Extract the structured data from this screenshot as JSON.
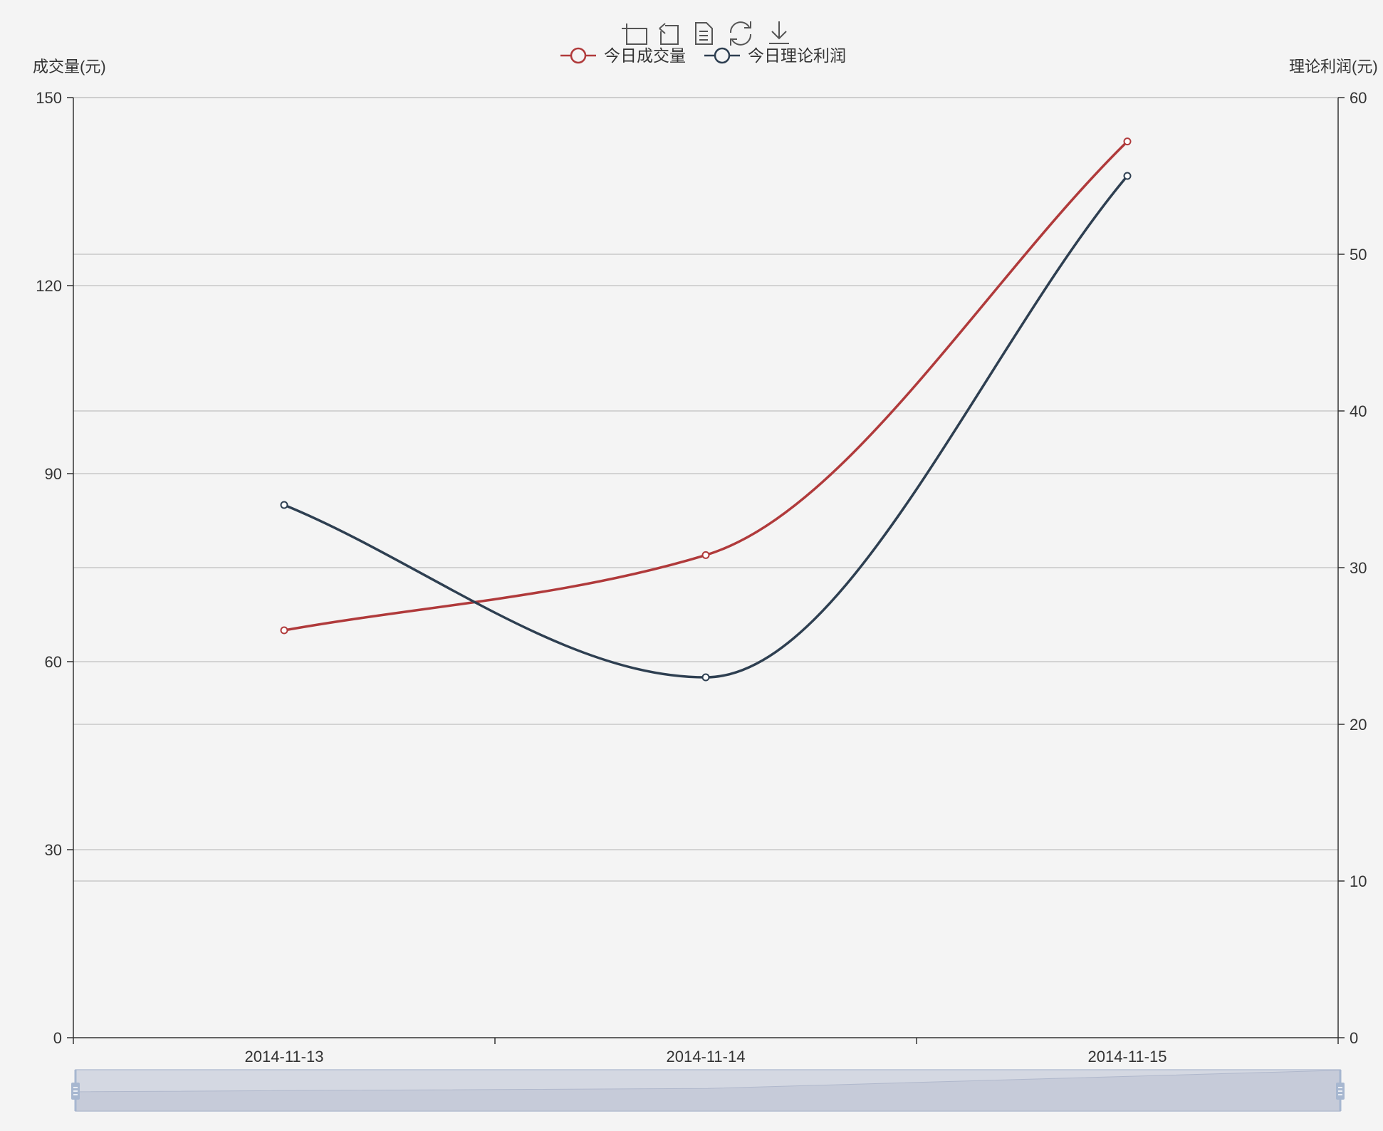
{
  "toolbox": {
    "items": [
      {
        "name": "zoom-icon"
      },
      {
        "name": "zoom-reset-icon"
      },
      {
        "name": "data-view-icon"
      },
      {
        "name": "restore-icon"
      },
      {
        "name": "save-image-icon"
      }
    ]
  },
  "colors": {
    "background": "#f4f4f4",
    "volume": "#b03a3b",
    "profit": "#2e3f51",
    "grid": "#c8c8c8",
    "axis": "#333333",
    "slider_fill": "#d4d8e2",
    "slider_border": "#b6c0d4"
  },
  "chart_data": {
    "type": "line",
    "smooth": true,
    "categories": [
      "2014-11-13",
      "2014-11-14",
      "2014-11-15"
    ],
    "y_left": {
      "label": "成交量(元)",
      "ylim": [
        0,
        150
      ],
      "ticks": [
        0,
        30,
        60,
        90,
        120,
        150
      ]
    },
    "y_right": {
      "label": "理论利润(元)",
      "ylim": [
        0,
        60
      ],
      "ticks": [
        0,
        10,
        20,
        30,
        40,
        50,
        60
      ]
    },
    "series": [
      {
        "name": "今日成交量",
        "axis": "left",
        "color": "#b03a3b",
        "values": [
          65,
          77,
          143
        ]
      },
      {
        "name": "今日理论利润",
        "axis": "right",
        "color": "#2e3f51",
        "values": [
          34,
          23,
          55
        ]
      }
    ],
    "legend_position": "top-center",
    "grid": true,
    "data_zoom": "bottom slider"
  }
}
